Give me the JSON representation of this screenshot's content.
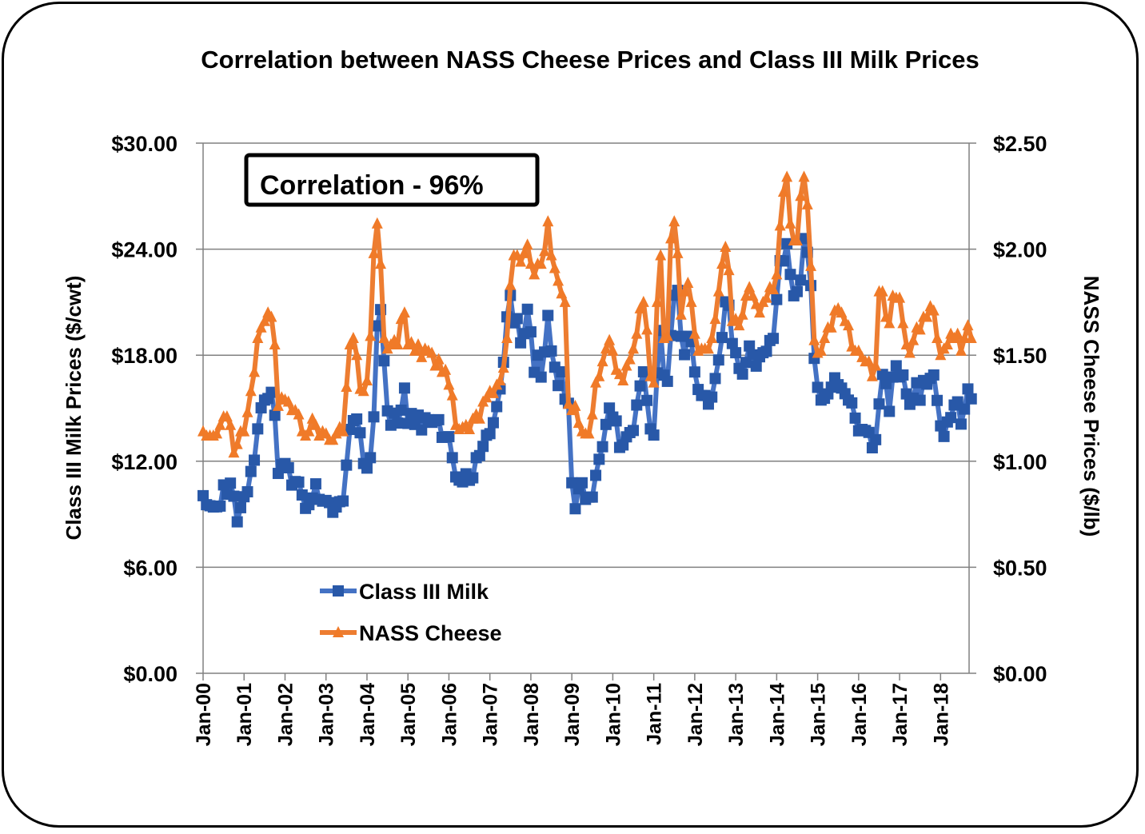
{
  "chart_data": {
    "type": "line",
    "title": "Correlation between NASS Cheese Prices and Class III Milk Prices",
    "annotation": "Correlation - 96%",
    "ylabel_left": "Class III Milk Prices ($/cwt)",
    "ylabel_right": "NASS Cheese Prices ($/lb)",
    "ylim_left": [
      0,
      30
    ],
    "ylim_right": [
      0,
      2.5
    ],
    "yticks_left": [
      "$0.00",
      "$6.00",
      "$12.00",
      "$18.00",
      "$24.00",
      "$30.00"
    ],
    "yticks_right": [
      "$0.00",
      "$0.50",
      "$1.00",
      "$1.50",
      "$2.00",
      "$2.50"
    ],
    "xticks": [
      "Jan-00",
      "Jan-01",
      "Jan-02",
      "Jan-03",
      "Jan-04",
      "Jan-05",
      "Jan-06",
      "Jan-07",
      "Jan-08",
      "Jan-09",
      "Jan-10",
      "Jan-11",
      "Jan-12",
      "Jan-13",
      "Jan-14",
      "Jan-15",
      "Jan-16",
      "Jan-17",
      "Jan-18"
    ],
    "x_start": "Jan-00",
    "x_frequency": "monthly",
    "grid": "horizontal",
    "legend_placement": "bottom-left",
    "series": [
      {
        "name": "Class III Milk",
        "axis": "left",
        "color": "#4472C4",
        "marker_color": "#2858A8",
        "marker": "square",
        "values": [
          10.05,
          9.54,
          9.48,
          9.41,
          9.42,
          9.46,
          10.66,
          10.13,
          10.76,
          10.02,
          8.57,
          9.37,
          9.99,
          10.27,
          11.42,
          12.06,
          13.83,
          15.02,
          15.46,
          15.55,
          15.9,
          14.6,
          11.31,
          11.8,
          11.87,
          11.63,
          10.65,
          10.85,
          10.82,
          10.09,
          9.33,
          9.54,
          9.92,
          10.72,
          9.84,
          9.74,
          9.78,
          9.66,
          9.11,
          9.41,
          9.71,
          9.75,
          11.78,
          13.8,
          14.3,
          14.39,
          13.61,
          11.87,
          11.61,
          12.2,
          14.51,
          19.66,
          20.58,
          17.68,
          14.85,
          14.04,
          14.72,
          14.16,
          14.89,
          16.14,
          14.14,
          14.7,
          14.08,
          14.61,
          13.77,
          14.46,
          14.35,
          14.2,
          14.3,
          14.35,
          13.35,
          13.37,
          13.39,
          12.2,
          11.11,
          10.93,
          10.83,
          11.29,
          10.92,
          11.06,
          12.2,
          12.32,
          12.84,
          13.47,
          13.56,
          14.18,
          15.09,
          16.09,
          17.6,
          20.17,
          21.38,
          19.83,
          20.07,
          18.7,
          19.22,
          20.6,
          19.32,
          17.03,
          18.0,
          16.76,
          18.18,
          20.25,
          18.24,
          17.32,
          16.28,
          17.06,
          15.51,
          15.28,
          10.78,
          9.31,
          10.44,
          10.78,
          9.84,
          9.97,
          9.97,
          11.2,
          12.11,
          12.82,
          14.08,
          15.01,
          14.5,
          14.28,
          12.78,
          12.92,
          13.38,
          13.62,
          13.74,
          15.18,
          16.26,
          17.06,
          15.44,
          13.83,
          13.48,
          17.0,
          19.4,
          16.87,
          16.52,
          19.11,
          21.39,
          21.67,
          19.07,
          18.03,
          19.07,
          18.77,
          17.05,
          16.06,
          15.72,
          15.72,
          15.23,
          15.63,
          16.68,
          17.73,
          19.0,
          21.02,
          20.83,
          18.66,
          18.14,
          17.25,
          16.93,
          17.59,
          18.52,
          18.02,
          17.38,
          17.91,
          18.14,
          18.22,
          18.83,
          18.95,
          21.15,
          23.35,
          23.33,
          24.31,
          22.57,
          21.36,
          21.6,
          22.25,
          24.6,
          23.82,
          21.94,
          17.82,
          16.18,
          15.46,
          15.56,
          15.81,
          16.19,
          16.72,
          16.33,
          16.14,
          15.82,
          15.46,
          15.3,
          14.44,
          13.72,
          13.8,
          13.74,
          13.63,
          12.76,
          13.22,
          15.24,
          16.91,
          16.39,
          14.82,
          16.76,
          17.4,
          16.77,
          16.88,
          15.81,
          15.22,
          15.57,
          16.44,
          15.45,
          16.57,
          16.36,
          16.69,
          16.88,
          15.44,
          14.0,
          13.4,
          14.22,
          14.47,
          15.18,
          15.36,
          14.1,
          14.95,
          16.09,
          15.53
        ]
      },
      {
        "name": "NASS Cheese",
        "axis": "right",
        "color": "#ED7D31",
        "marker_color": "#F07A28",
        "marker": "triangle",
        "values": [
          1.14,
          1.12,
          1.12,
          1.12,
          1.13,
          1.17,
          1.21,
          1.21,
          1.17,
          1.04,
          1.08,
          1.14,
          1.14,
          1.23,
          1.33,
          1.42,
          1.58,
          1.63,
          1.66,
          1.7,
          1.68,
          1.55,
          1.26,
          1.3,
          1.29,
          1.28,
          1.24,
          1.24,
          1.22,
          1.14,
          1.12,
          1.14,
          1.2,
          1.17,
          1.12,
          1.14,
          1.13,
          1.1,
          1.1,
          1.13,
          1.16,
          1.14,
          1.35,
          1.55,
          1.58,
          1.5,
          1.34,
          1.33,
          1.38,
          1.59,
          1.98,
          2.12,
          1.93,
          1.58,
          1.53,
          1.55,
          1.57,
          1.55,
          1.67,
          1.7,
          1.55,
          1.56,
          1.52,
          1.55,
          1.49,
          1.53,
          1.52,
          1.51,
          1.45,
          1.48,
          1.42,
          1.43,
          1.36,
          1.31,
          1.17,
          1.15,
          1.16,
          1.17,
          1.15,
          1.2,
          1.22,
          1.2,
          1.28,
          1.3,
          1.33,
          1.32,
          1.36,
          1.38,
          1.44,
          1.58,
          1.83,
          1.97,
          1.97,
          1.94,
          1.98,
          2.02,
          1.93,
          1.88,
          1.93,
          1.93,
          1.99,
          2.13,
          1.97,
          1.91,
          1.85,
          1.79,
          1.75,
          1.27,
          1.24,
          1.26,
          1.18,
          1.14,
          1.13,
          1.13,
          1.22,
          1.37,
          1.4,
          1.47,
          1.53,
          1.57,
          1.52,
          1.43,
          1.41,
          1.38,
          1.45,
          1.48,
          1.53,
          1.6,
          1.72,
          1.75,
          1.62,
          1.4,
          1.37,
          1.75,
          1.97,
          1.58,
          1.59,
          2.05,
          2.13,
          1.98,
          1.69,
          1.8,
          1.84,
          1.75,
          1.6,
          1.52,
          1.53,
          1.53,
          1.53,
          1.58,
          1.67,
          1.8,
          1.93,
          2.01,
          1.9,
          1.66,
          1.67,
          1.64,
          1.69,
          1.78,
          1.82,
          1.78,
          1.74,
          1.7,
          1.75,
          1.77,
          1.82,
          1.81,
          1.88,
          2.11,
          2.27,
          2.34,
          2.12,
          2.04,
          2.04,
          2.25,
          2.34,
          2.21,
          1.92,
          1.57,
          1.51,
          1.52,
          1.58,
          1.63,
          1.63,
          1.71,
          1.72,
          1.7,
          1.66,
          1.64,
          1.54,
          1.52,
          1.52,
          1.49,
          1.47,
          1.47,
          1.4,
          1.45,
          1.8,
          1.8,
          1.68,
          1.65,
          1.78,
          1.77,
          1.77,
          1.65,
          1.55,
          1.51,
          1.57,
          1.63,
          1.62,
          1.68,
          1.68,
          1.73,
          1.71,
          1.58,
          1.5,
          1.53,
          1.55,
          1.6,
          1.58,
          1.6,
          1.52,
          1.58,
          1.64,
          1.58
        ]
      }
    ]
  }
}
